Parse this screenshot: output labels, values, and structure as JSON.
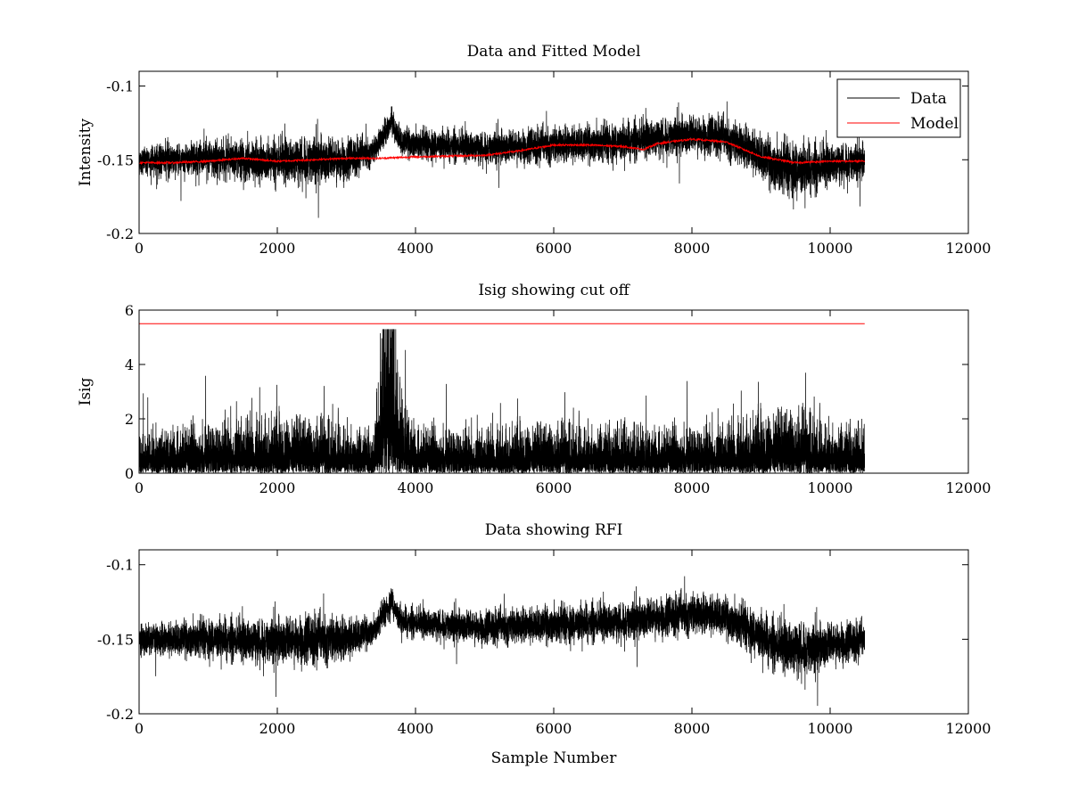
{
  "figure": {
    "background": "#ffffff"
  },
  "chart_data": [
    {
      "type": "line",
      "title": "Data and Fitted Model",
      "xlabel": "",
      "ylabel": "Intensity",
      "xlim": [
        0,
        12000
      ],
      "ylim": [
        -0.2,
        -0.09
      ],
      "xticks": [
        0,
        2000,
        4000,
        6000,
        8000,
        10000,
        12000
      ],
      "yticks": [
        -0.2,
        -0.15,
        -0.1
      ],
      "xtick_labels": [
        "0",
        "2000",
        "4000",
        "6000",
        "8000",
        "10000",
        "12000"
      ],
      "ytick_labels": [
        "-0.2",
        "-0.15",
        "-0.1"
      ],
      "legend": {
        "position": "top-right",
        "entries": [
          "Data",
          "Model"
        ]
      },
      "series": [
        {
          "name": "Data",
          "color": "#000000",
          "style": "noisy",
          "n_points": 10500,
          "baseline": {
            "x": [
              0,
              500,
              1000,
              1500,
              2000,
              2500,
              3000,
              3400,
              3550,
              3620,
              3650,
              3700,
              3800,
              4000,
              5000,
              6000,
              7000,
              7500,
              8000,
              8400,
              8600,
              8800,
              9000,
              9200,
              9500,
              9800,
              10000,
              10200,
              10500
            ],
            "y": [
              -0.151,
              -0.15,
              -0.149,
              -0.151,
              -0.151,
              -0.15,
              -0.15,
              -0.144,
              -0.132,
              -0.128,
              -0.122,
              -0.13,
              -0.138,
              -0.139,
              -0.142,
              -0.14,
              -0.138,
              -0.135,
              -0.133,
              -0.134,
              -0.138,
              -0.142,
              -0.148,
              -0.154,
              -0.156,
              -0.156,
              -0.153,
              -0.152,
              -0.151
            ]
          },
          "noise_sd": {
            "x": [
              0,
              1500,
              2500,
              3000,
              3400,
              4000,
              6000,
              7500,
              8500,
              9000,
              9500,
              10000,
              10500
            ],
            "y": [
              0.0045,
              0.0065,
              0.0075,
              0.0065,
              0.004,
              0.0045,
              0.0055,
              0.006,
              0.006,
              0.007,
              0.0085,
              0.0065,
              0.0055
            ]
          }
        },
        {
          "name": "Model",
          "color": "#ff0000",
          "style": "smooth",
          "x": [
            0,
            500,
            1000,
            1500,
            2000,
            2500,
            3000,
            3500,
            4000,
            5000,
            5500,
            6000,
            6500,
            7000,
            7300,
            7500,
            8000,
            8500,
            9000,
            9500,
            10000,
            10500
          ],
          "y": [
            -0.152,
            -0.152,
            -0.151,
            -0.149,
            -0.151,
            -0.15,
            -0.149,
            -0.149,
            -0.148,
            -0.147,
            -0.144,
            -0.14,
            -0.14,
            -0.141,
            -0.143,
            -0.139,
            -0.136,
            -0.138,
            -0.148,
            -0.152,
            -0.151,
            -0.151
          ]
        }
      ]
    },
    {
      "type": "line",
      "title": "Isig showing cut off",
      "xlabel": "",
      "ylabel": "Isig",
      "xlim": [
        0,
        12000
      ],
      "ylim": [
        0,
        6
      ],
      "xticks": [
        0,
        2000,
        4000,
        6000,
        8000,
        10000,
        12000
      ],
      "yticks": [
        0,
        2,
        4,
        6
      ],
      "xtick_labels": [
        "0",
        "2000",
        "4000",
        "6000",
        "8000",
        "10000",
        "12000"
      ],
      "ytick_labels": [
        "0",
        "2",
        "4",
        "6"
      ],
      "series": [
        {
          "name": "",
          "color": "#000000",
          "style": "abs-noise",
          "n_points": 10500,
          "scale": {
            "x": [
              0,
              1500,
              2500,
              3000,
              3400,
              3550,
              3650,
              3750,
              4000,
              5000,
              6000,
              7000,
              8500,
              9000,
              9500,
              10000,
              10500
            ],
            "y": [
              0.75,
              0.95,
              1.05,
              0.9,
              0.7,
              3.0,
              4.2,
              1.6,
              0.85,
              0.75,
              0.95,
              0.8,
              0.85,
              1.05,
              1.25,
              0.9,
              0.8
            ]
          }
        },
        {
          "name": "",
          "color": "#ff0000",
          "style": "smooth",
          "x": [
            0,
            10500
          ],
          "y": [
            5.5,
            5.5
          ]
        }
      ]
    },
    {
      "type": "line",
      "title": "Data showing RFI",
      "xlabel": "Sample Number",
      "ylabel": "",
      "xlim": [
        0,
        12000
      ],
      "ylim": [
        -0.2,
        -0.09
      ],
      "xticks": [
        0,
        2000,
        4000,
        6000,
        8000,
        10000,
        12000
      ],
      "yticks": [
        -0.2,
        -0.15,
        -0.1
      ],
      "xtick_labels": [
        "0",
        "2000",
        "4000",
        "6000",
        "8000",
        "10000",
        "12000"
      ],
      "ytick_labels": [
        "-0.2",
        "-0.15",
        "-0.1"
      ],
      "series": [
        {
          "name": "",
          "color": "#000000",
          "style": "noisy",
          "n_points": 10500,
          "baseline": {
            "x": [
              0,
              500,
              1000,
              1500,
              2000,
              2500,
              3000,
              3400,
              3550,
              3620,
              3650,
              3700,
              3800,
              4000,
              5000,
              6000,
              7000,
              7500,
              8000,
              8400,
              8600,
              8800,
              9000,
              9200,
              9500,
              9800,
              10000,
              10200,
              10500
            ],
            "y": [
              -0.151,
              -0.15,
              -0.149,
              -0.151,
              -0.151,
              -0.15,
              -0.15,
              -0.144,
              -0.132,
              -0.128,
              -0.122,
              -0.13,
              -0.138,
              -0.139,
              -0.142,
              -0.14,
              -0.138,
              -0.135,
              -0.133,
              -0.134,
              -0.138,
              -0.142,
              -0.148,
              -0.154,
              -0.156,
              -0.156,
              -0.153,
              -0.152,
              -0.151
            ]
          },
          "noise_sd": {
            "x": [
              0,
              1500,
              2500,
              3000,
              3400,
              4000,
              6000,
              7500,
              8500,
              9000,
              9500,
              10000,
              10500
            ],
            "y": [
              0.0045,
              0.0065,
              0.0075,
              0.0065,
              0.004,
              0.0045,
              0.0055,
              0.006,
              0.006,
              0.007,
              0.0085,
              0.0065,
              0.0055
            ]
          }
        }
      ]
    }
  ]
}
